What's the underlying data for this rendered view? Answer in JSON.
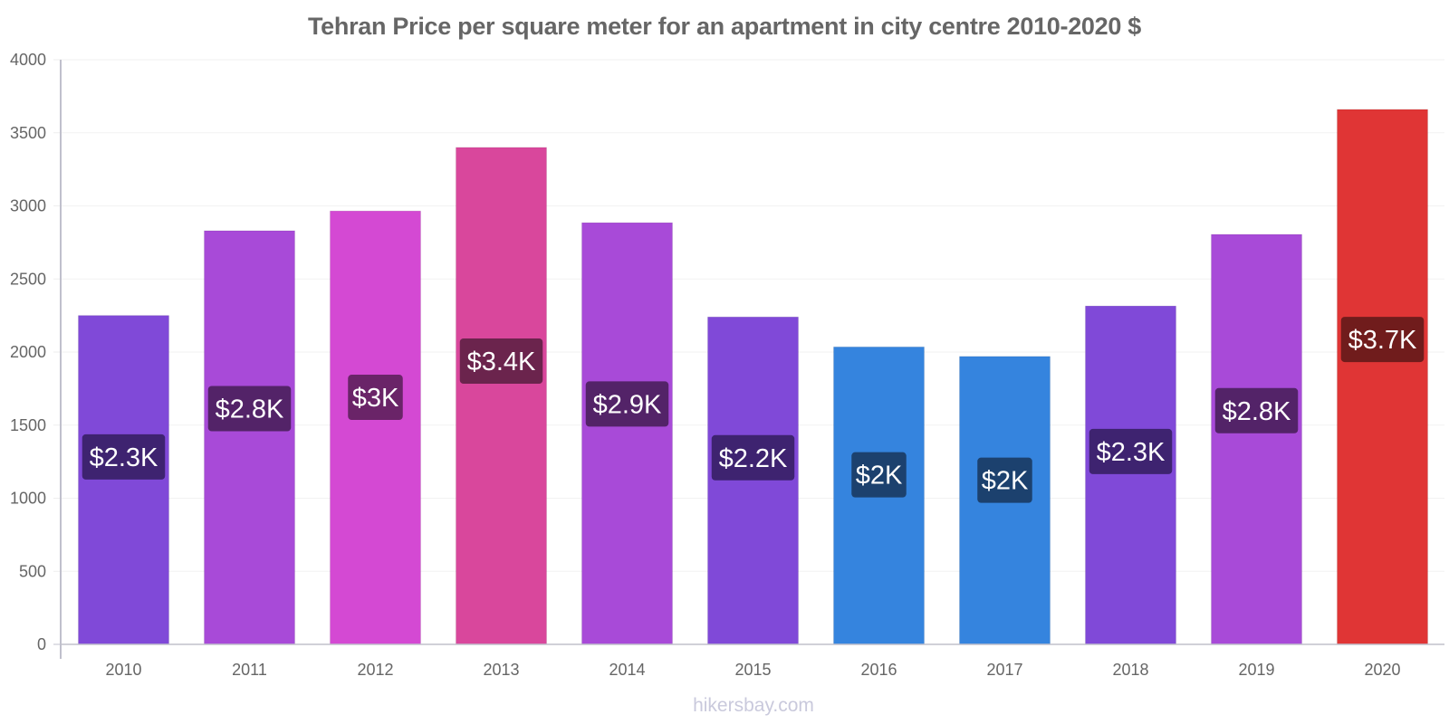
{
  "chart_data": {
    "type": "bar",
    "title": "Tehran Price per square meter for an apartment in city centre 2010-2020 $",
    "xlabel": "",
    "ylabel": "",
    "ylim": [
      0,
      4000
    ],
    "yticks": [
      0,
      500,
      1000,
      1500,
      2000,
      2500,
      3000,
      3500,
      4000
    ],
    "grid": true,
    "legend": "none",
    "categories": [
      "2010",
      "2011",
      "2012",
      "2013",
      "2014",
      "2015",
      "2016",
      "2017",
      "2018",
      "2019",
      "2020"
    ],
    "values": [
      2250,
      2830,
      2965,
      3400,
      2885,
      2240,
      2035,
      1970,
      2315,
      2805,
      3660
    ],
    "data_labels": [
      "$2.3K",
      "$2.8K",
      "$3K",
      "$3.4K",
      "$2.9K",
      "$2.2K",
      "$2K",
      "$2K",
      "$2.3K",
      "$2.8K",
      "$3.7K"
    ],
    "bar_colors": [
      "#8049d8",
      "#a84ad8",
      "#d449d3",
      "#d9479c",
      "#a84ad8",
      "#8049d8",
      "#3584de",
      "#3584de",
      "#8049d8",
      "#a84ad8",
      "#e03535"
    ],
    "label_colors": [
      "#3e2370",
      "#532368",
      "#6a2468",
      "#6b244d",
      "#532368",
      "#3e2370",
      "#1c416e",
      "#1c416e",
      "#3e2370",
      "#532368",
      "#701c1c"
    ]
  },
  "footer": "hikersbay.com"
}
